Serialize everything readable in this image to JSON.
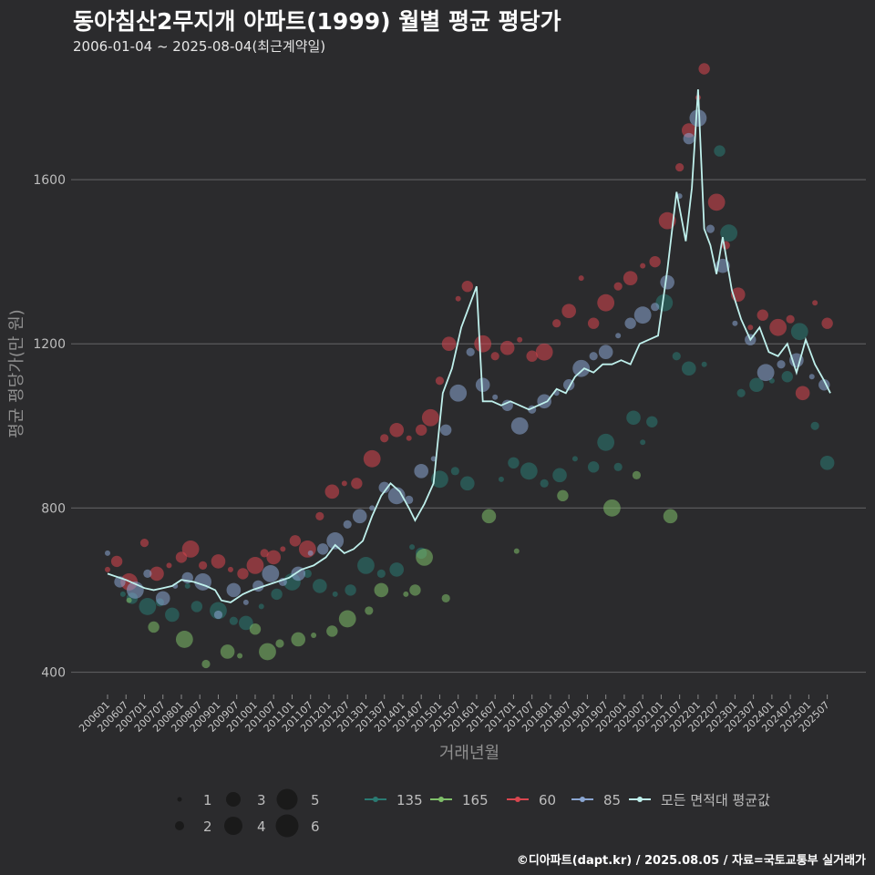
{
  "title": "동아침산2무지개 아파트(1999) 월별 평균 평당가",
  "subtitle": "2006-01-04 ~ 2025-08-04(최근계약일)",
  "caption": "©디아파트(dapt.kr) / 2025.08.05 / 자료=국토교통부 실거래가",
  "chart_data": {
    "type": "scatter",
    "xlabel": "거래년월",
    "ylabel": "평균 평당가(만 원)",
    "ylim": [
      350,
      1900
    ],
    "yticks": [
      400,
      800,
      1200,
      1600
    ],
    "x_range": [
      "2006-01",
      "2025-08"
    ],
    "xticks": [
      "200601",
      "200607",
      "200701",
      "200707",
      "200801",
      "200807",
      "200901",
      "200907",
      "201001",
      "201007",
      "201101",
      "201107",
      "201201",
      "201207",
      "201301",
      "201307",
      "201401",
      "201407",
      "201501",
      "201507",
      "201601",
      "201607",
      "201701",
      "201707",
      "201801",
      "201807",
      "201901",
      "201907",
      "202001",
      "202007",
      "202101",
      "202107",
      "202201",
      "202207",
      "202301",
      "202307",
      "202401",
      "202407",
      "202501",
      "202507"
    ],
    "colors": {
      "135": "#2a7a72",
      "165": "#7fbf6a",
      "60": "#d9464f",
      "85": "#8aa6d2",
      "all": "#bff0ec"
    },
    "size_legend": {
      "labels": [
        "1",
        "2",
        "3",
        "4",
        "5",
        "6"
      ]
    },
    "series": [
      {
        "name": "135",
        "points": [
          [
            "2006-06",
            590
          ],
          [
            "2006-09",
            580
          ],
          [
            "2007-02",
            560
          ],
          [
            "2007-06",
            570
          ],
          [
            "2007-10",
            540
          ],
          [
            "2008-03",
            610
          ],
          [
            "2008-06",
            560
          ],
          [
            "2009-01",
            550
          ],
          [
            "2009-06",
            525
          ],
          [
            "2009-10",
            520
          ],
          [
            "2010-03",
            560
          ],
          [
            "2010-08",
            590
          ],
          [
            "2011-01",
            620
          ],
          [
            "2011-06",
            640
          ],
          [
            "2011-10",
            610
          ],
          [
            "2012-03",
            590
          ],
          [
            "2012-08",
            600
          ],
          [
            "2013-01",
            660
          ],
          [
            "2013-06",
            640
          ],
          [
            "2013-11",
            650
          ],
          [
            "2014-04",
            705
          ],
          [
            "2014-07",
            690
          ],
          [
            "2015-01",
            870
          ],
          [
            "2015-06",
            890
          ],
          [
            "2015-10",
            860
          ],
          [
            "2016-09",
            870
          ],
          [
            "2017-01",
            910
          ],
          [
            "2017-06",
            890
          ],
          [
            "2017-11",
            860
          ],
          [
            "2018-04",
            880
          ],
          [
            "2018-09",
            920
          ],
          [
            "2019-03",
            900
          ],
          [
            "2019-07",
            960
          ],
          [
            "2019-11",
            900
          ],
          [
            "2020-04",
            1020
          ],
          [
            "2020-07",
            960
          ],
          [
            "2020-10",
            1010
          ],
          [
            "2021-02",
            1300
          ],
          [
            "2021-06",
            1170
          ],
          [
            "2021-10",
            1140
          ],
          [
            "2022-03",
            1150
          ],
          [
            "2022-08",
            1670
          ],
          [
            "2022-11",
            1470
          ],
          [
            "2023-03",
            1080
          ],
          [
            "2023-08",
            1100
          ],
          [
            "2024-01",
            1110
          ],
          [
            "2024-06",
            1120
          ],
          [
            "2024-10",
            1230
          ],
          [
            "2025-03",
            1000
          ],
          [
            "2025-07",
            910
          ]
        ]
      },
      {
        "name": "165",
        "points": [
          [
            "2006-08",
            575
          ],
          [
            "2007-04",
            510
          ],
          [
            "2008-02",
            480
          ],
          [
            "2008-09",
            420
          ],
          [
            "2009-04",
            450
          ],
          [
            "2009-08",
            440
          ],
          [
            "2010-01",
            505
          ],
          [
            "2010-05",
            450
          ],
          [
            "2010-09",
            470
          ],
          [
            "2011-03",
            480
          ],
          [
            "2011-08",
            490
          ],
          [
            "2012-02",
            500
          ],
          [
            "2012-07",
            530
          ],
          [
            "2013-02",
            550
          ],
          [
            "2013-06",
            600
          ],
          [
            "2014-02",
            590
          ],
          [
            "2014-05",
            600
          ],
          [
            "2014-08",
            680
          ],
          [
            "2015-03",
            580
          ],
          [
            "2016-05",
            780
          ],
          [
            "2017-02",
            695
          ],
          [
            "2018-05",
            830
          ],
          [
            "2019-09",
            800
          ],
          [
            "2020-05",
            880
          ],
          [
            "2021-04",
            780
          ]
        ]
      },
      {
        "name": "60",
        "points": [
          [
            "2006-01",
            650
          ],
          [
            "2006-04",
            670
          ],
          [
            "2006-08",
            620
          ],
          [
            "2007-01",
            715
          ],
          [
            "2007-05",
            640
          ],
          [
            "2007-09",
            660
          ],
          [
            "2008-01",
            680
          ],
          [
            "2008-04",
            700
          ],
          [
            "2008-08",
            660
          ],
          [
            "2009-01",
            670
          ],
          [
            "2009-05",
            650
          ],
          [
            "2009-09",
            640
          ],
          [
            "2010-01",
            660
          ],
          [
            "2010-04",
            690
          ],
          [
            "2010-07",
            680
          ],
          [
            "2010-10",
            700
          ],
          [
            "2011-02",
            720
          ],
          [
            "2011-06",
            700
          ],
          [
            "2011-10",
            780
          ],
          [
            "2012-02",
            840
          ],
          [
            "2012-06",
            860
          ],
          [
            "2012-10",
            860
          ],
          [
            "2013-03",
            920
          ],
          [
            "2013-07",
            970
          ],
          [
            "2013-11",
            990
          ],
          [
            "2014-03",
            970
          ],
          [
            "2014-07",
            990
          ],
          [
            "2014-10",
            1020
          ],
          [
            "2015-01",
            1110
          ],
          [
            "2015-04",
            1200
          ],
          [
            "2015-07",
            1310
          ],
          [
            "2015-10",
            1340
          ],
          [
            "2016-03",
            1200
          ],
          [
            "2016-07",
            1170
          ],
          [
            "2016-11",
            1190
          ],
          [
            "2017-03",
            1210
          ],
          [
            "2017-07",
            1170
          ],
          [
            "2017-11",
            1180
          ],
          [
            "2018-03",
            1250
          ],
          [
            "2018-07",
            1280
          ],
          [
            "2018-11",
            1360
          ],
          [
            "2019-03",
            1250
          ],
          [
            "2019-07",
            1300
          ],
          [
            "2019-11",
            1340
          ],
          [
            "2020-03",
            1360
          ],
          [
            "2020-07",
            1390
          ],
          [
            "2020-11",
            1400
          ],
          [
            "2021-03",
            1500
          ],
          [
            "2021-07",
            1630
          ],
          [
            "2021-10",
            1720
          ],
          [
            "2022-01",
            1800
          ],
          [
            "2022-03",
            1870
          ],
          [
            "2022-07",
            1545
          ],
          [
            "2022-10",
            1440
          ],
          [
            "2023-02",
            1320
          ],
          [
            "2023-06",
            1240
          ],
          [
            "2023-10",
            1270
          ],
          [
            "2024-03",
            1240
          ],
          [
            "2024-07",
            1260
          ],
          [
            "2024-11",
            1080
          ],
          [
            "2025-03",
            1300
          ],
          [
            "2025-07",
            1250
          ]
        ]
      },
      {
        "name": "85",
        "points": [
          [
            "2006-01",
            690
          ],
          [
            "2006-05",
            620
          ],
          [
            "2006-10",
            600
          ],
          [
            "2007-02",
            640
          ],
          [
            "2007-07",
            580
          ],
          [
            "2007-11",
            610
          ],
          [
            "2008-03",
            630
          ],
          [
            "2008-08",
            620
          ],
          [
            "2009-01",
            540
          ],
          [
            "2009-06",
            600
          ],
          [
            "2009-10",
            570
          ],
          [
            "2010-02",
            610
          ],
          [
            "2010-06",
            640
          ],
          [
            "2010-10",
            620
          ],
          [
            "2011-03",
            640
          ],
          [
            "2011-07",
            690
          ],
          [
            "2011-11",
            700
          ],
          [
            "2012-03",
            720
          ],
          [
            "2012-07",
            760
          ],
          [
            "2012-11",
            780
          ],
          [
            "2013-03",
            800
          ],
          [
            "2013-07",
            850
          ],
          [
            "2013-11",
            830
          ],
          [
            "2014-03",
            820
          ],
          [
            "2014-07",
            890
          ],
          [
            "2014-11",
            920
          ],
          [
            "2015-03",
            990
          ],
          [
            "2015-07",
            1080
          ],
          [
            "2015-11",
            1180
          ],
          [
            "2016-03",
            1100
          ],
          [
            "2016-07",
            1070
          ],
          [
            "2016-11",
            1050
          ],
          [
            "2017-03",
            1000
          ],
          [
            "2017-07",
            1040
          ],
          [
            "2017-11",
            1060
          ],
          [
            "2018-03",
            1080
          ],
          [
            "2018-07",
            1100
          ],
          [
            "2018-11",
            1140
          ],
          [
            "2019-03",
            1170
          ],
          [
            "2019-07",
            1180
          ],
          [
            "2019-11",
            1220
          ],
          [
            "2020-03",
            1250
          ],
          [
            "2020-07",
            1270
          ],
          [
            "2020-11",
            1290
          ],
          [
            "2021-03",
            1350
          ],
          [
            "2021-07",
            1560
          ],
          [
            "2021-10",
            1700
          ],
          [
            "2022-01",
            1750
          ],
          [
            "2022-05",
            1480
          ],
          [
            "2022-09",
            1390
          ],
          [
            "2023-01",
            1250
          ],
          [
            "2023-06",
            1210
          ],
          [
            "2023-11",
            1130
          ],
          [
            "2024-04",
            1150
          ],
          [
            "2024-09",
            1160
          ],
          [
            "2025-02",
            1120
          ],
          [
            "2025-06",
            1100
          ]
        ]
      }
    ],
    "overall": {
      "name": "모든 면적대 평균값",
      "points": [
        [
          "2006-01",
          640
        ],
        [
          "2006-07",
          625
        ],
        [
          "2007-01",
          605
        ],
        [
          "2007-04",
          600
        ],
        [
          "2007-07",
          605
        ],
        [
          "2007-10",
          610
        ],
        [
          "2008-01",
          625
        ],
        [
          "2008-05",
          620
        ],
        [
          "2008-09",
          610
        ],
        [
          "2008-12",
          600
        ],
        [
          "2009-02",
          575
        ],
        [
          "2009-05",
          570
        ],
        [
          "2009-09",
          590
        ],
        [
          "2009-12",
          600
        ],
        [
          "2010-04",
          610
        ],
        [
          "2010-08",
          620
        ],
        [
          "2010-12",
          630
        ],
        [
          "2011-04",
          650
        ],
        [
          "2011-08",
          660
        ],
        [
          "2011-12",
          680
        ],
        [
          "2012-03",
          710
        ],
        [
          "2012-06",
          690
        ],
        [
          "2012-09",
          700
        ],
        [
          "2012-12",
          720
        ],
        [
          "2013-03",
          780
        ],
        [
          "2013-06",
          830
        ],
        [
          "2013-09",
          860
        ],
        [
          "2013-12",
          840
        ],
        [
          "2014-03",
          800
        ],
        [
          "2014-05",
          770
        ],
        [
          "2014-08",
          810
        ],
        [
          "2014-11",
          860
        ],
        [
          "2015-02",
          1080
        ],
        [
          "2015-05",
          1140
        ],
        [
          "2015-08",
          1240
        ],
        [
          "2015-11",
          1300
        ],
        [
          "2016-01",
          1340
        ],
        [
          "2016-03",
          1060
        ],
        [
          "2016-06",
          1060
        ],
        [
          "2016-09",
          1050
        ],
        [
          "2016-12",
          1060
        ],
        [
          "2017-03",
          1050
        ],
        [
          "2017-06",
          1040
        ],
        [
          "2017-09",
          1050
        ],
        [
          "2017-12",
          1060
        ],
        [
          "2018-03",
          1090
        ],
        [
          "2018-06",
          1080
        ],
        [
          "2018-09",
          1120
        ],
        [
          "2018-12",
          1140
        ],
        [
          "2019-03",
          1130
        ],
        [
          "2019-06",
          1150
        ],
        [
          "2019-09",
          1150
        ],
        [
          "2019-12",
          1160
        ],
        [
          "2020-03",
          1150
        ],
        [
          "2020-06",
          1200
        ],
        [
          "2020-09",
          1210
        ],
        [
          "2020-12",
          1220
        ],
        [
          "2021-03",
          1380
        ],
        [
          "2021-06",
          1570
        ],
        [
          "2021-09",
          1450
        ],
        [
          "2021-11",
          1580
        ],
        [
          "2022-01",
          1820
        ],
        [
          "2022-03",
          1480
        ],
        [
          "2022-05",
          1440
        ],
        [
          "2022-07",
          1370
        ],
        [
          "2022-09",
          1460
        ],
        [
          "2022-12",
          1330
        ],
        [
          "2023-03",
          1260
        ],
        [
          "2023-06",
          1210
        ],
        [
          "2023-09",
          1240
        ],
        [
          "2023-12",
          1180
        ],
        [
          "2024-03",
          1170
        ],
        [
          "2024-06",
          1200
        ],
        [
          "2024-09",
          1130
        ],
        [
          "2024-12",
          1210
        ],
        [
          "2025-03",
          1150
        ],
        [
          "2025-06",
          1110
        ],
        [
          "2025-08",
          1080
        ]
      ]
    }
  }
}
